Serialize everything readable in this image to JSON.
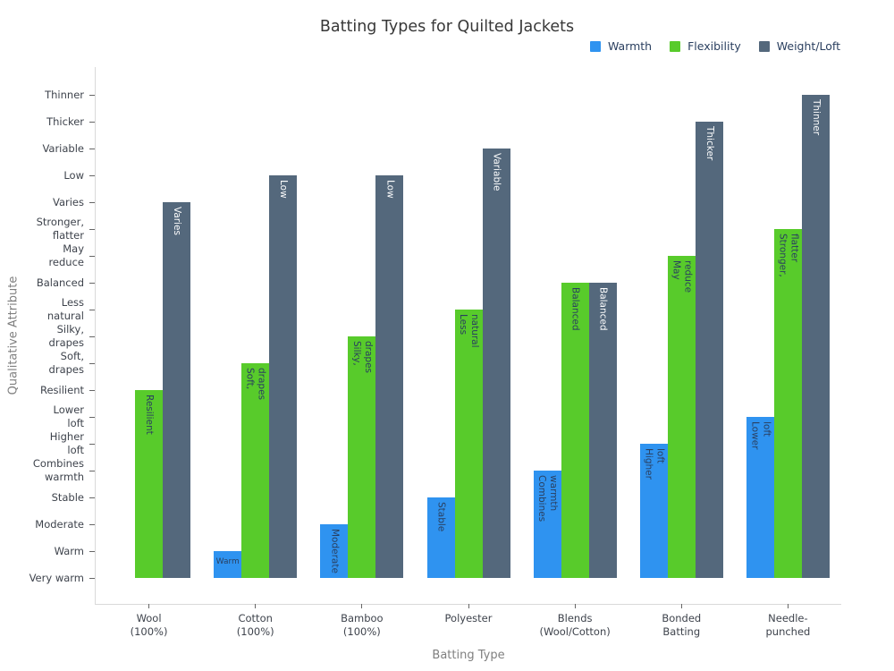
{
  "chart": {
    "title": "Batting Types for Quilted Jackets",
    "xlabel": "Batting Type",
    "ylabel": "Qualitative Attribute"
  },
  "legend": {
    "items": [
      {
        "id": "warmth",
        "label": "Warmth",
        "color": "#2f93f0"
      },
      {
        "id": "flexibility",
        "label": "Flexibility",
        "color": "#58cb2b"
      },
      {
        "id": "weight-loft",
        "label": "Weight/Loft",
        "color": "#54687c"
      }
    ]
  },
  "chart_data": {
    "type": "bar",
    "orientation": "vertical",
    "grid": false,
    "legend_position": "top-right",
    "title": "Batting Types for Quilted Jackets",
    "xlabel": "Batting Type",
    "ylabel": "Qualitative Attribute",
    "x_categories": [
      {
        "label": "Wool (100%)",
        "lines": [
          "Wool",
          "(100%)"
        ]
      },
      {
        "label": "Cotton (100%)",
        "lines": [
          "Cotton",
          "(100%)"
        ]
      },
      {
        "label": "Bamboo (100%)",
        "lines": [
          "Bamboo",
          "(100%)"
        ]
      },
      {
        "label": "Polyester",
        "lines": [
          "Polyester"
        ]
      },
      {
        "label": "Blends (Wool/Cotton)",
        "lines": [
          "Blends",
          "(Wool/Cotton)"
        ]
      },
      {
        "label": "Bonded Batting",
        "lines": [
          "Bonded",
          "Batting"
        ]
      },
      {
        "label": "Needle-punched",
        "lines": [
          "Needle-",
          "punched"
        ]
      }
    ],
    "y_categories": [
      {
        "rank": 0,
        "label": "Very warm",
        "lines": [
          "Very warm"
        ]
      },
      {
        "rank": 1,
        "label": "Warm",
        "lines": [
          "Warm"
        ]
      },
      {
        "rank": 2,
        "label": "Moderate",
        "lines": [
          "Moderate"
        ]
      },
      {
        "rank": 3,
        "label": "Stable",
        "lines": [
          "Stable"
        ]
      },
      {
        "rank": 4,
        "label": "Combines warmth",
        "lines": [
          "Combines",
          "warmth"
        ]
      },
      {
        "rank": 5,
        "label": "Higher loft",
        "lines": [
          "Higher",
          "loft"
        ]
      },
      {
        "rank": 6,
        "label": "Lower loft",
        "lines": [
          "Lower",
          "loft"
        ]
      },
      {
        "rank": 7,
        "label": "Resilient",
        "lines": [
          "Resilient"
        ]
      },
      {
        "rank": 8,
        "label": "Soft, drapes",
        "lines": [
          "Soft,",
          "drapes"
        ]
      },
      {
        "rank": 9,
        "label": "Silky, drapes",
        "lines": [
          "Silky,",
          "drapes"
        ]
      },
      {
        "rank": 10,
        "label": "Less natural",
        "lines": [
          "Less",
          "natural"
        ]
      },
      {
        "rank": 11,
        "label": "Balanced",
        "lines": [
          "Balanced"
        ]
      },
      {
        "rank": 12,
        "label": "May reduce",
        "lines": [
          "May",
          "reduce"
        ]
      },
      {
        "rank": 13,
        "label": "Stronger, flatter",
        "lines": [
          "Stronger,",
          "flatter"
        ]
      },
      {
        "rank": 14,
        "label": "Varies",
        "lines": [
          "Varies"
        ]
      },
      {
        "rank": 15,
        "label": "Low",
        "lines": [
          "Low"
        ]
      },
      {
        "rank": 16,
        "label": "Variable",
        "lines": [
          "Variable"
        ]
      },
      {
        "rank": 17,
        "label": "Thicker",
        "lines": [
          "Thicker"
        ]
      },
      {
        "rank": 18,
        "label": "Thinner",
        "lines": [
          "Thinner"
        ]
      }
    ],
    "series": [
      {
        "name": "Warmth",
        "color": "#2f93f0",
        "label_color": "#2a3f5f",
        "values": [
          "Very warm",
          "Warm",
          "Moderate",
          "Stable",
          "Combines warmth",
          "Higher loft",
          "Lower loft"
        ]
      },
      {
        "name": "Flexibility",
        "color": "#58cb2b",
        "label_color": "#2a3f5f",
        "values": [
          "Resilient",
          "Soft, drapes",
          "Silky, drapes",
          "Less natural",
          "Balanced",
          "May reduce",
          "Stronger, flatter"
        ]
      },
      {
        "name": "Weight/Loft",
        "color": "#54687c",
        "label_color": "#ffffff",
        "values": [
          "Varies",
          "Low",
          "Low",
          "Variable",
          "Balanced",
          "Thicker",
          "Thinner"
        ]
      }
    ]
  }
}
